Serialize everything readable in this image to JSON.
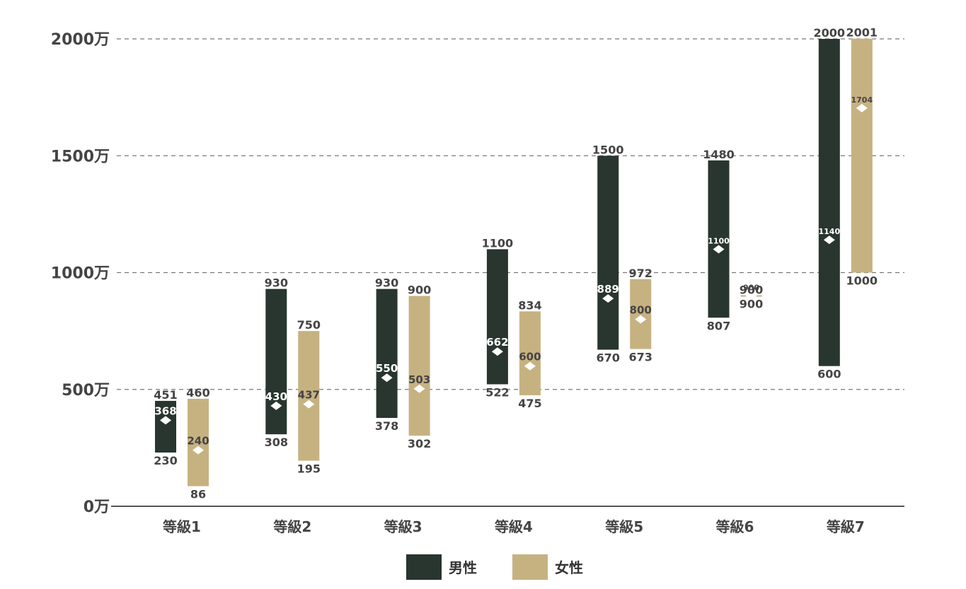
{
  "chart_data": {
    "type": "range-bar",
    "categories": [
      "等級1",
      "等級2",
      "等級3",
      "等級4",
      "等級5",
      "等級6",
      "等級7"
    ],
    "y_unit_suffix": "万",
    "ylim": [
      0,
      2000
    ],
    "y_ticks": [
      0,
      500,
      1000,
      1500,
      2000
    ],
    "y_tick_labels": [
      "0万",
      "500万",
      "1000万",
      "1500万",
      "2000万"
    ],
    "grid": "horizontal dashed",
    "legend_position": "bottom-center",
    "colors": {
      "male": "#29352f",
      "female": "#c6b281",
      "marker": "#ffffff",
      "grid": "#777777",
      "axis": "#555555",
      "text": "#444444"
    },
    "series": [
      {
        "name": "男性",
        "color": "#29352f",
        "min": [
          230,
          308,
          378,
          522,
          670,
          807,
          600
        ],
        "max": [
          451,
          930,
          930,
          1100,
          1500,
          1480,
          2000
        ],
        "mid": [
          368,
          430,
          550,
          662,
          889,
          1100,
          1140
        ]
      },
      {
        "name": "女性",
        "color": "#c6b281",
        "min": [
          86,
          195,
          302,
          475,
          673,
          900,
          1000
        ],
        "max": [
          460,
          750,
          900,
          834,
          972,
          900,
          2001
        ],
        "mid": [
          240,
          437,
          503,
          600,
          800,
          900,
          1704
        ]
      }
    ]
  }
}
